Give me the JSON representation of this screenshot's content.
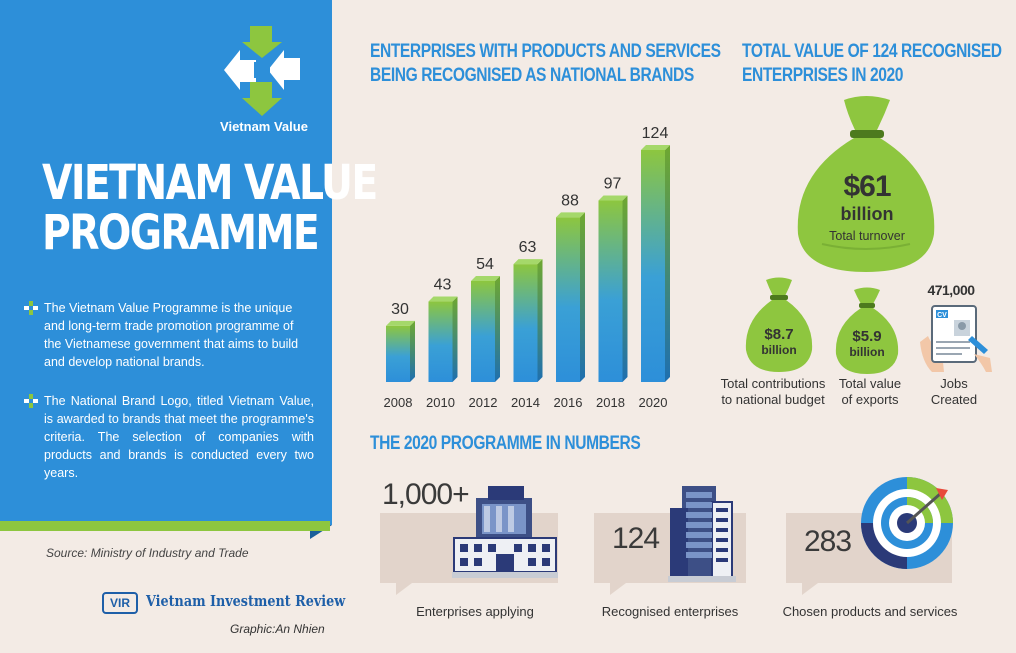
{
  "brand": {
    "logo_text": "Vietnam Value",
    "title_line1": "VIETNAM VALUE",
    "title_line2": "PROGRAMME"
  },
  "bullets": [
    "The Vietnam Value Programme is the unique and long-term trade promotion programme of the Vietnamese government that aims to build and develop national brands.",
    "The National Brand Logo, titled Vietnam Value, is awarded to brands that meet the programme's criteria. The selection of companies with products and brands is conducted every two years."
  ],
  "footer": {
    "source": "Source: Ministry of Industry and Trade",
    "vir_logo": "VIR",
    "publication": "Vietnam Investment Review",
    "credit": "Graphic:An Nhien"
  },
  "chart_title": {
    "line1": "ENTERPRISES WITH PRODUCTS AND SERVICES",
    "line2": "BEING RECOGNISED AS NATIONAL BRANDS"
  },
  "chart_data": {
    "type": "bar",
    "categories": [
      "2008",
      "2010",
      "2012",
      "2014",
      "2016",
      "2018",
      "2020"
    ],
    "values": [
      30,
      43,
      54,
      63,
      88,
      97,
      124
    ],
    "ylim": [
      0,
      124
    ],
    "grid": false,
    "data_labels": true
  },
  "value_section": {
    "title_line1": "TOTAL VALUE OF 124 RECOGNISED",
    "title_line2": "ENTERPRISES IN 2020",
    "turnover": {
      "value": "$61",
      "unit": "billion",
      "label": "Total turnover"
    },
    "budget": {
      "value": "$8.7",
      "unit": "billion",
      "caption_line1": "Total contributions",
      "caption_line2": "to national budget"
    },
    "exports": {
      "value": "$5.9",
      "unit": "billion",
      "caption_line1": "Total value",
      "caption_line2": "of exports"
    },
    "jobs": {
      "value": "471,000",
      "caption_line1": "Jobs",
      "caption_line2": "Created",
      "cv_label": "CV"
    }
  },
  "numbers_section": {
    "title": "THE 2020 PROGRAMME IN NUMBERS",
    "items": [
      {
        "value": "1,000+",
        "label": "Enterprises applying"
      },
      {
        "value": "124",
        "label": "Recognised enterprises"
      },
      {
        "value": "283",
        "label": "Chosen products and services"
      }
    ]
  },
  "colors": {
    "blue": "#2d8fd9",
    "green": "#8dc63f",
    "bag_green": "#8ec63f",
    "background": "#f3ebe5",
    "box": "#e2d4cb",
    "navy": "#2b3a78"
  },
  "icons": [
    "vietnam-value-logo",
    "money-bag-icon",
    "cv-document-icon",
    "office-building-icon",
    "target-icon"
  ]
}
